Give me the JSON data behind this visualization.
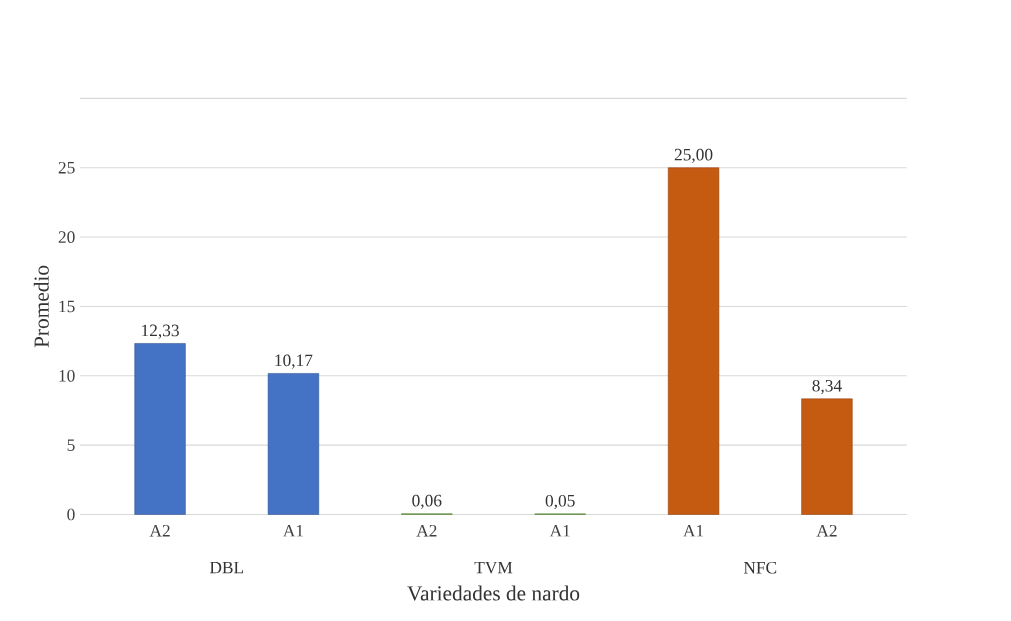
{
  "chart_data": {
    "type": "bar",
    "xlabel": "Variedades de nardo",
    "ylabel": "Promedio",
    "categories": [
      "A2",
      "A1",
      "A2",
      "A1",
      "A1",
      "A2"
    ],
    "values": [
      12.33,
      10.17,
      0.06,
      0.05,
      25.0,
      8.34
    ],
    "colors": [
      "#4472c4",
      "#4472c4",
      "#70ad47",
      "#70ad47",
      "#c55a11",
      "#c55a11"
    ],
    "value_labels": [
      "12,33",
      "10,17",
      "0,06",
      "0,05",
      "25,00",
      "8,34"
    ],
    "annotations": [
      "DBL",
      "TVM",
      "NFC"
    ],
    "ylim": [
      0,
      30
    ],
    "yticks": [
      0,
      5,
      10,
      15,
      20,
      25,
      {
        "value": 30,
        "label": null
      }
    ],
    "grid": "y"
  }
}
